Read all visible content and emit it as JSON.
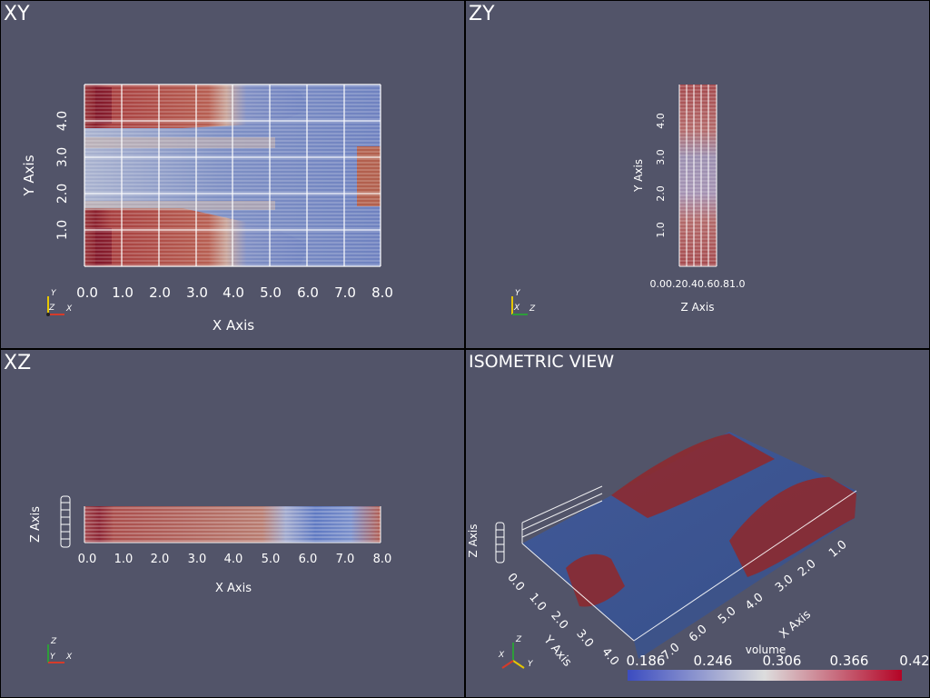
{
  "panes": {
    "xy": {
      "title": "XY",
      "x_axis_title": "X Axis",
      "y_axis_title": "Y Axis",
      "x_ticks": [
        "0.0",
        "1.0",
        "2.0",
        "3.0",
        "4.0",
        "5.0",
        "6.0",
        "7.0",
        "8.0"
      ],
      "y_ticks": [
        "1.0",
        "2.0",
        "3.0",
        "4.0"
      ],
      "orient": {
        "up": "Y",
        "right": "X",
        "out": "Z"
      }
    },
    "zy": {
      "title": "ZY",
      "x_axis_title": "Z Axis",
      "y_axis_title": "Y Axis",
      "x_ticks_overlap": "0.00.20.40.60.81.0",
      "y_ticks": [
        "1.0",
        "2.0",
        "3.0",
        "4.0"
      ],
      "orient": {
        "up": "Y",
        "right": "Z",
        "out": "X"
      }
    },
    "xz": {
      "title": "XZ",
      "x_axis_title": "X Axis",
      "y_axis_title": "Z Axis",
      "x_ticks": [
        "0.0",
        "1.0",
        "2.0",
        "3.0",
        "4.0",
        "5.0",
        "6.0",
        "7.0",
        "8.0"
      ],
      "orient": {
        "up": "Z",
        "right": "X",
        "out": "Y"
      }
    },
    "iso": {
      "title": "ISOMETRIC VIEW",
      "x_axis_title": "X Axis",
      "y_axis_title": "Y Axis",
      "z_axis_title": "Z Axis",
      "x_ticks": [
        "1.0",
        "2.0",
        "3.0",
        "4.0",
        "5.0",
        "6.0",
        "7.0"
      ],
      "y_ticks": [
        "0.0",
        "1.0",
        "2.0",
        "3.0",
        "4.0"
      ],
      "orient": {
        "x": "X",
        "y": "Y",
        "z": "Z"
      }
    }
  },
  "colorbar": {
    "title": "volume",
    "ticks": [
      "0.186",
      "0.246",
      "0.306",
      "0.366",
      "0.42"
    ],
    "colors": {
      "low": "#3b4cc0",
      "mid": "#dddddd",
      "high": "#b40426"
    }
  },
  "colors": {
    "background": "#525469",
    "separator": "#000000"
  }
}
